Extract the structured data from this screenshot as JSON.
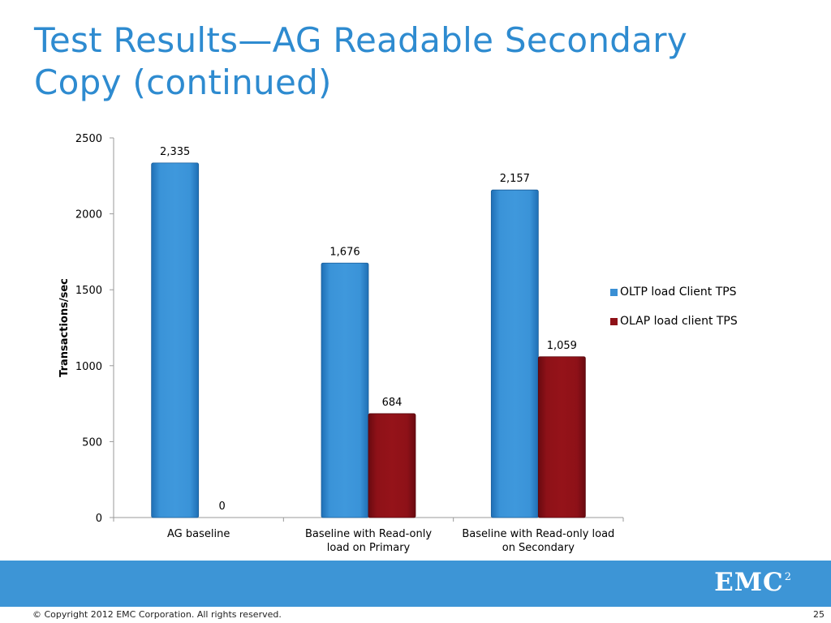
{
  "slide": {
    "title_line1": "Test Results—AG Readable Secondary",
    "title_line2": "Copy (continued)",
    "copyright": "© Copyright 2012 EMC Corporation. All rights reserved.",
    "page_number": "25",
    "logo_text": "EMC",
    "logo_superscript": "2"
  },
  "colors": {
    "title": "#2e8bd0",
    "series_oltp": "#3a8fd4",
    "series_olap": "#8e1118",
    "footer_band": "#3d95d6"
  },
  "chart_data": {
    "type": "bar",
    "title": "",
    "xlabel": "",
    "ylabel": "Transactions/sec",
    "ylim": [
      0,
      2500
    ],
    "yticks": [
      0,
      500,
      1000,
      1500,
      2000,
      2500
    ],
    "categories": [
      [
        "AG baseline"
      ],
      [
        "Baseline  with Read-only",
        "load on Primary"
      ],
      [
        "Baseline with Read-only load",
        "on Secondary"
      ]
    ],
    "series": [
      {
        "name": "OLTP load Client TPS",
        "values": [
          2335,
          1676,
          2157
        ],
        "labels": [
          "2,335",
          "1,676",
          "2,157"
        ]
      },
      {
        "name": "OLAP load client TPS",
        "values": [
          0,
          684,
          1059
        ],
        "labels": [
          "0",
          "684",
          "1,059"
        ]
      }
    ],
    "grid": false,
    "legend_position": "right"
  }
}
